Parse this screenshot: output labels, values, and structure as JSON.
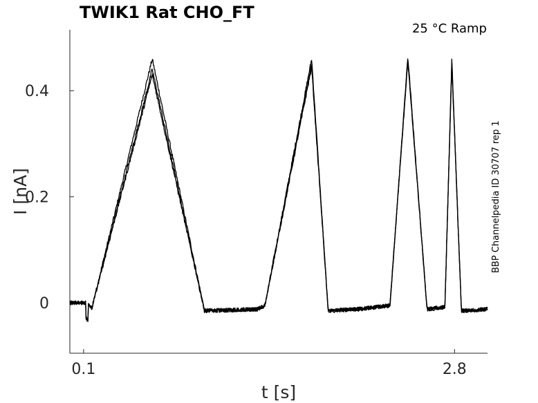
{
  "chart_data": {
    "type": "line",
    "title": "TWIK1  Rat  CHO_FT",
    "condition": "25 °C  Ramp",
    "side_label": "BBP Channelpedia ID 30707 rep 1",
    "xlabel": "t [s]",
    "ylabel": "I [nA]",
    "xlim": [
      0.0,
      3.04
    ],
    "ylim": [
      -0.095,
      0.515
    ],
    "x_ticks": [
      0.1,
      2.8
    ],
    "x_tick_labels": [
      "0.1",
      "2.8"
    ],
    "y_ticks": [
      0,
      0.2,
      0.4
    ],
    "y_tick_labels": [
      "0",
      "0.2",
      "0.4"
    ],
    "grid": false,
    "series": [
      {
        "x": [
          0.0,
          0.1,
          0.12,
          0.16,
          0.6,
          0.98,
          1.37,
          1.42,
          1.76,
          1.88,
          2.1,
          2.33,
          2.46,
          2.6,
          2.73,
          2.78,
          2.85,
          3.04
        ],
        "y": [
          0.0,
          0.0,
          0.0,
          -0.01,
          0.46,
          -0.015,
          -0.012,
          -0.005,
          0.46,
          -0.015,
          -0.012,
          -0.005,
          0.465,
          -0.012,
          -0.008,
          0.46,
          -0.015,
          -0.012
        ]
      },
      {
        "x": [
          0.0,
          0.1,
          0.12,
          0.16,
          0.6,
          0.98,
          1.37,
          1.42,
          1.76,
          1.88,
          2.1,
          2.33,
          2.46,
          2.6,
          2.73,
          2.78,
          2.85,
          3.04
        ],
        "y": [
          0.0,
          0.0,
          0.0,
          -0.01,
          0.44,
          -0.015,
          -0.012,
          -0.005,
          0.45,
          -0.015,
          -0.012,
          -0.005,
          0.46,
          -0.012,
          -0.008,
          0.455,
          -0.015,
          -0.012
        ]
      },
      {
        "x": [
          0.0,
          0.1,
          0.12,
          0.16,
          0.6,
          0.98,
          1.37,
          1.42,
          1.76,
          1.88,
          2.1,
          2.33,
          2.46,
          2.6,
          2.73,
          2.78,
          2.85,
          3.04
        ],
        "y": [
          0.0,
          0.0,
          0.0,
          -0.01,
          0.43,
          -0.015,
          -0.012,
          -0.005,
          0.445,
          -0.015,
          -0.012,
          -0.005,
          0.455,
          -0.012,
          -0.008,
          0.45,
          -0.015,
          -0.012
        ]
      }
    ]
  }
}
